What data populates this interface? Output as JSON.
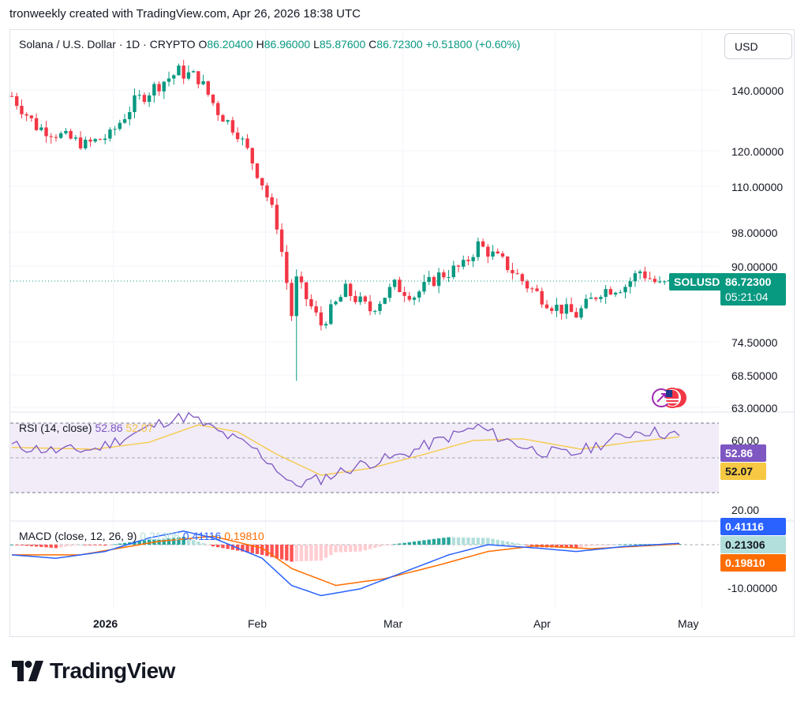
{
  "header": {
    "text": "tronweekly created with TradingView.com, Apr 26, 2026 18:38 UTC"
  },
  "symbol": {
    "title": "Solana / U.S. Dollar · 1D · CRYPTO",
    "o_label": "O",
    "o": "86.20400",
    "h_label": "H",
    "h": "86.96000",
    "l_label": "L",
    "l": "85.87600",
    "c_label": "C",
    "c": "86.72300",
    "change": "+0.51800 (+0.60%)",
    "ticker": "SOLUSD",
    "last_price": "86.72300",
    "countdown": "05:21:04"
  },
  "currency_button": {
    "label": "USD"
  },
  "rsi_legend": {
    "title": "RSI (14, close)",
    "value": "52.86",
    "ma": "52.07"
  },
  "macd_legend": {
    "title": "MACD (close, 12, 26, 9)",
    "hist": "0.21306",
    "macd": "0.41116",
    "signal": "0.19810"
  },
  "price_axis": [
    "140.00000",
    "120.00000",
    "110.00000",
    "98.00000",
    "90.00000",
    "74.50000",
    "68.50000",
    "63.00000"
  ],
  "rsi_axis": [
    "60.00",
    "20.00"
  ],
  "macd_axis": [
    "-10.00000"
  ],
  "time_axis": [
    "2026",
    "Feb",
    "Mar",
    "Apr",
    "May"
  ],
  "brand": {
    "name": "TradingView"
  },
  "colors": {
    "up": "#089981",
    "down": "#f23645",
    "rsi": "#7e57c2",
    "rsi_ma": "#f7c843",
    "macd": "#2962ff",
    "signal": "#ff6d00",
    "rsi_band": "#ede7f6"
  },
  "chart_data": [
    {
      "type": "candlestick",
      "title": "Solana / U.S. Dollar · 1D · CRYPTO",
      "x_start": "2025-12-11",
      "x_end": "2026-04-26",
      "price_axis_ticks": [
        140,
        120,
        110,
        98,
        90,
        74.5,
        68.5,
        63
      ],
      "close_series": [
        {
          "date": "2025-12-11",
          "close": 138
        },
        {
          "date": "2025-12-16",
          "close": 128
        },
        {
          "date": "2025-12-21",
          "close": 125
        },
        {
          "date": "2025-12-26",
          "close": 122
        },
        {
          "date": "2025-12-31",
          "close": 125
        },
        {
          "date": "2026-01-05",
          "close": 136
        },
        {
          "date": "2026-01-10",
          "close": 142
        },
        {
          "date": "2026-01-14",
          "close": 146
        },
        {
          "date": "2026-01-18",
          "close": 144
        },
        {
          "date": "2026-01-22",
          "close": 133
        },
        {
          "date": "2026-01-26",
          "close": 126
        },
        {
          "date": "2026-01-31",
          "close": 111
        },
        {
          "date": "2026-02-03",
          "close": 100
        },
        {
          "date": "2026-02-06",
          "close": 80
        },
        {
          "date": "2026-02-07",
          "close": 87
        },
        {
          "date": "2026-02-12",
          "close": 78
        },
        {
          "date": "2026-02-17",
          "close": 85
        },
        {
          "date": "2026-02-22",
          "close": 81
        },
        {
          "date": "2026-02-27",
          "close": 86
        },
        {
          "date": "2026-03-03",
          "close": 84
        },
        {
          "date": "2026-03-08",
          "close": 88
        },
        {
          "date": "2026-03-13",
          "close": 90
        },
        {
          "date": "2026-03-16",
          "close": 95
        },
        {
          "date": "2026-03-21",
          "close": 91
        },
        {
          "date": "2026-03-26",
          "close": 86
        },
        {
          "date": "2026-03-31",
          "close": 82
        },
        {
          "date": "2026-04-05",
          "close": 80
        },
        {
          "date": "2026-04-10",
          "close": 85
        },
        {
          "date": "2026-04-15",
          "close": 86
        },
        {
          "date": "2026-04-18",
          "close": 89
        },
        {
          "date": "2026-04-22",
          "close": 86
        },
        {
          "date": "2026-04-26",
          "close": 86.723
        }
      ],
      "last": {
        "open": 86.204,
        "high": 86.96,
        "low": 85.876,
        "close": 86.723
      }
    },
    {
      "type": "line",
      "name": "RSI (14, close)",
      "ylim": [
        20,
        60
      ],
      "series": [
        {
          "name": "RSI",
          "points": [
            [
              "2025-12-11",
              47
            ],
            [
              "2025-12-20",
              44
            ],
            [
              "2025-12-28",
              45
            ],
            [
              "2026-01-05",
              54
            ],
            [
              "2026-01-12",
              62
            ],
            [
              "2026-01-16",
              64
            ],
            [
              "2026-01-22",
              55
            ],
            [
              "2026-01-29",
              46
            ],
            [
              "2026-02-03",
              34
            ],
            [
              "2026-02-06",
              24
            ],
            [
              "2026-02-12",
              28
            ],
            [
              "2026-02-20",
              36
            ],
            [
              "2026-02-28",
              41
            ],
            [
              "2026-03-08",
              50
            ],
            [
              "2026-03-16",
              58
            ],
            [
              "2026-03-21",
              51
            ],
            [
              "2026-03-28",
              44
            ],
            [
              "2026-04-04",
              42
            ],
            [
              "2026-04-12",
              50
            ],
            [
              "2026-04-18",
              56
            ],
            [
              "2026-04-26",
              52.86
            ]
          ]
        },
        {
          "name": "RSI MA",
          "points": [
            [
              "2025-12-11",
              46
            ],
            [
              "2025-12-28",
              45
            ],
            [
              "2026-01-08",
              49
            ],
            [
              "2026-01-18",
              59
            ],
            [
              "2026-01-26",
              55
            ],
            [
              "2026-02-03",
              42
            ],
            [
              "2026-02-12",
              30
            ],
            [
              "2026-02-22",
              34
            ],
            [
              "2026-03-05",
              42
            ],
            [
              "2026-03-15",
              50
            ],
            [
              "2026-03-25",
              51
            ],
            [
              "2026-04-06",
              45
            ],
            [
              "2026-04-16",
              49
            ],
            [
              "2026-04-26",
              52.07
            ]
          ]
        }
      ]
    },
    {
      "type": "line",
      "name": "MACD (close, 12, 26, 9)",
      "series": [
        {
          "name": "MACD",
          "points": [
            [
              "2025-12-11",
              -3
            ],
            [
              "2025-12-20",
              -4
            ],
            [
              "2025-12-30",
              -2
            ],
            [
              "2026-01-08",
              2
            ],
            [
              "2026-01-15",
              4
            ],
            [
              "2026-01-21",
              2
            ],
            [
              "2026-01-31",
              -4
            ],
            [
              "2026-02-06",
              -12
            ],
            [
              "2026-02-12",
              -15
            ],
            [
              "2026-02-20",
              -13
            ],
            [
              "2026-03-01",
              -8
            ],
            [
              "2026-03-10",
              -3
            ],
            [
              "2026-03-18",
              0
            ],
            [
              "2026-03-28",
              -1
            ],
            [
              "2026-04-05",
              -2
            ],
            [
              "2026-04-15",
              -0.5
            ],
            [
              "2026-04-26",
              0.41116
            ]
          ]
        },
        {
          "name": "Signal",
          "points": [
            [
              "2025-12-11",
              -3
            ],
            [
              "2025-12-25",
              -3
            ],
            [
              "2026-01-10",
              1
            ],
            [
              "2026-01-21",
              2.5
            ],
            [
              "2026-01-31",
              -1
            ],
            [
              "2026-02-06",
              -7
            ],
            [
              "2026-02-15",
              -12
            ],
            [
              "2026-02-25",
              -10
            ],
            [
              "2026-03-08",
              -6
            ],
            [
              "2026-03-18",
              -2
            ],
            [
              "2026-03-28",
              -0.3
            ],
            [
              "2026-04-08",
              -1.2
            ],
            [
              "2026-04-26",
              0.1981
            ]
          ]
        },
        {
          "name": "Histogram",
          "last": 0.21306
        }
      ]
    }
  ]
}
